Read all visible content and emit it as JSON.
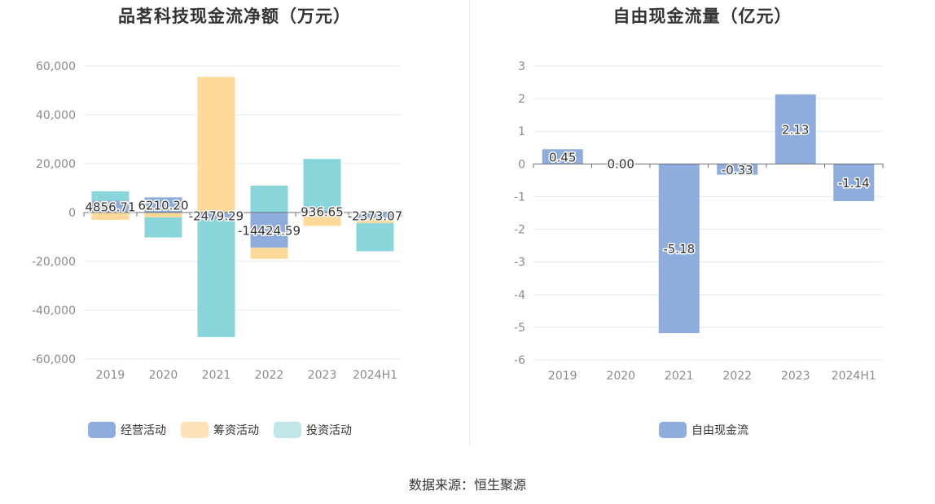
{
  "charts": {
    "left": {
      "title": "品茗科技现金流净额（万元）",
      "legend": [
        {
          "label": "经营活动",
          "color": "#8eacdc"
        },
        {
          "label": "筹资活动",
          "color": "#fde2b8"
        },
        {
          "label": "投资活动",
          "color": "#c0e6ea"
        }
      ]
    },
    "right": {
      "title": "自由现金流量（亿元）",
      "legend": [
        {
          "label": "自由现金流",
          "color": "#8eacdc"
        }
      ]
    }
  },
  "source": "数据来源：恒生聚源",
  "chart_data": [
    {
      "type": "bar",
      "stacked": true,
      "title": "品茗科技现金流净额（万元）",
      "categories": [
        "2019",
        "2020",
        "2021",
        "2022",
        "2023",
        "2024H1"
      ],
      "ylim": [
        -60000,
        60000
      ],
      "yticks": [
        60000,
        40000,
        20000,
        0,
        -20000,
        -40000,
        -60000
      ],
      "ytick_labels": [
        "60,000",
        "40,000",
        "20,000",
        "0",
        "-20,000",
        "-40,000",
        "-60,000"
      ],
      "grid": true,
      "legend_position": "bottom",
      "series": [
        {
          "name": "经营活动",
          "color": "#8eacdc",
          "values": [
            4856.71,
            6210.2,
            -2479.29,
            -14424.59,
            936.65,
            -2373.07
          ],
          "labels": [
            "4856.71",
            "6210.20",
            "-2479.29",
            "-14424.59",
            "936.65",
            "-2373.07"
          ]
        },
        {
          "name": "筹资活动",
          "color": "#ffd99a",
          "values": [
            -3000,
            -2000,
            55500,
            -4500,
            -5500,
            -2000
          ]
        },
        {
          "name": "投资活动",
          "color": "#88d6da",
          "values": [
            3800,
            -8200,
            -48500,
            11000,
            21000,
            -11500
          ]
        }
      ]
    },
    {
      "type": "bar",
      "title": "自由现金流量（亿元）",
      "categories": [
        "2019",
        "2020",
        "2021",
        "2022",
        "2023",
        "2024H1"
      ],
      "ylim": [
        -6,
        3
      ],
      "yticks": [
        3,
        2,
        1,
        0,
        -1,
        -2,
        -3,
        -4,
        -5,
        -6
      ],
      "ytick_labels": [
        "3",
        "2",
        "1",
        "0",
        "-1",
        "-2",
        "-3",
        "-4",
        "-5",
        "-6"
      ],
      "grid": true,
      "legend_position": "bottom",
      "series": [
        {
          "name": "自由现金流",
          "color": "#8eacdc",
          "values": [
            0.45,
            0.0,
            -5.18,
            -0.33,
            2.13,
            -1.14
          ],
          "labels": [
            "0.45",
            "0.00",
            "-5.18",
            "-0.33",
            "2.13",
            "-1.14"
          ]
        }
      ]
    }
  ]
}
